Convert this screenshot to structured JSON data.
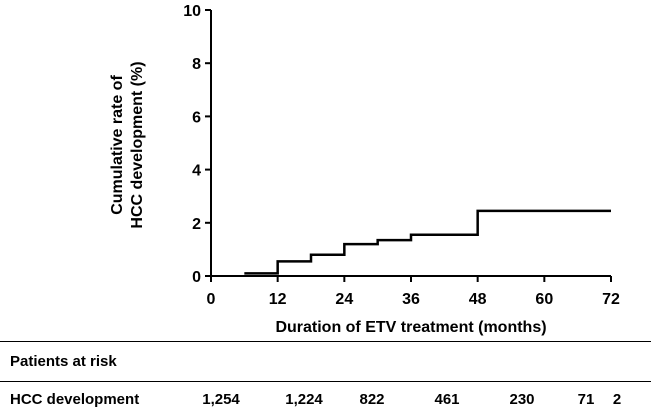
{
  "chart_data": {
    "type": "line",
    "subtype": "step",
    "ylabel": [
      "Cumulative rate of",
      "HCC development (%)"
    ],
    "xlabel": "Duration of ETV treatment (months)",
    "xlim": [
      0,
      72
    ],
    "ylim": [
      0,
      10
    ],
    "x_ticks": [
      0,
      12,
      24,
      36,
      48,
      60,
      72
    ],
    "y_ticks": [
      0,
      2,
      4,
      6,
      8,
      10
    ],
    "grid": false,
    "series": [
      {
        "x": [
          6,
          12,
          12,
          18,
          18,
          24,
          24,
          30,
          30,
          36,
          36,
          48,
          48,
          72
        ],
        "y": [
          0.1,
          0.1,
          0.55,
          0.55,
          0.8,
          0.8,
          1.2,
          1.2,
          1.35,
          1.35,
          1.55,
          1.55,
          2.45,
          2.45
        ]
      }
    ]
  },
  "risk_table": {
    "header": "Patients at risk",
    "rows": [
      {
        "label": "HCC development",
        "values": [
          "1,254",
          "1,224",
          "822",
          "461",
          "230",
          "71",
          "2"
        ]
      }
    ]
  }
}
